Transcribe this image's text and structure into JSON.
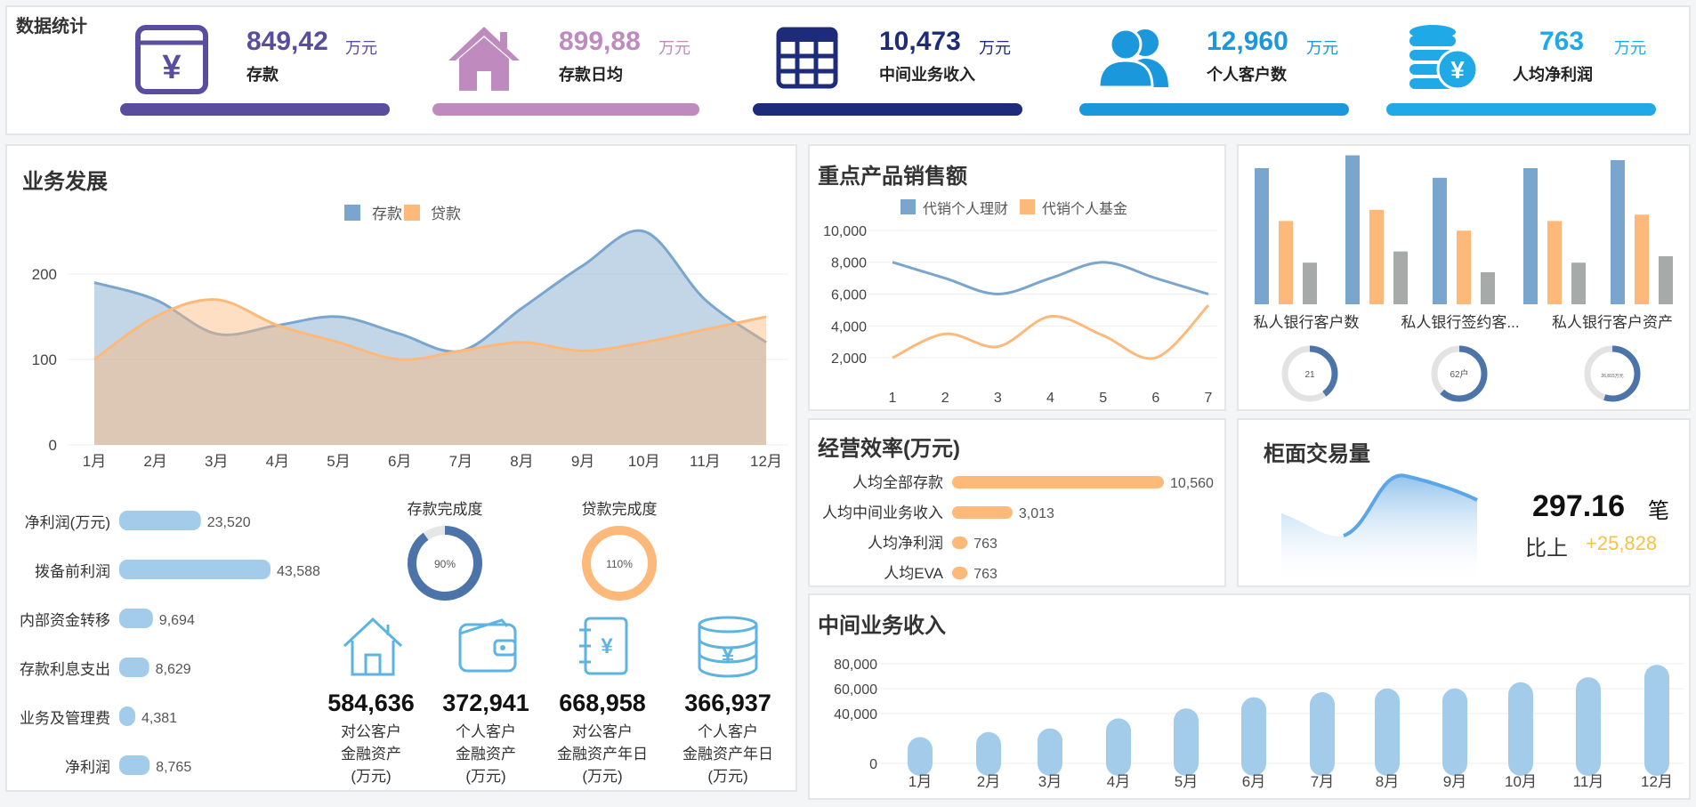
{
  "header": {
    "title": "数据统计"
  },
  "kpis": [
    {
      "value": "849,42",
      "unit": "万元",
      "label": "存款",
      "icon": "money-box-icon",
      "color": "#5b4d9e"
    },
    {
      "value": "899,88",
      "unit": "万元",
      "label": "存款日均",
      "icon": "house-icon",
      "color": "#bf8abe"
    },
    {
      "value": "10,473",
      "unit": "万元",
      "label": "中间业务收入",
      "icon": "grid-icon",
      "color": "#1d2b7a"
    },
    {
      "value": "12,960",
      "unit": "万元",
      "label": "个人客户数",
      "icon": "users-icon",
      "color": "#1b97db"
    },
    {
      "value": "763",
      "unit": "万元",
      "label": "人均净利润",
      "icon": "coins-icon",
      "color": "#1fa9e6"
    }
  ],
  "business": {
    "title": "业务发展",
    "chart_data": {
      "type": "area",
      "categories": [
        "1月",
        "2月",
        "3月",
        "4月",
        "5月",
        "6月",
        "7月",
        "8月",
        "9月",
        "10月",
        "11月",
        "12月"
      ],
      "series": [
        {
          "name": "存款",
          "values": [
            190,
            170,
            130,
            140,
            150,
            130,
            110,
            160,
            210,
            250,
            170,
            120
          ]
        },
        {
          "name": "贷款",
          "values": [
            100,
            150,
            170,
            140,
            120,
            100,
            110,
            120,
            110,
            120,
            135,
            150
          ]
        }
      ],
      "yticks": [
        "0",
        "100",
        "200"
      ],
      "ylim": [
        0,
        250
      ]
    }
  },
  "profit_bars": {
    "chart_data": {
      "type": "bar",
      "categories": [
        "净利润(万元)",
        "拨备前利润",
        "内部资金转移",
        "存款利息支出",
        "业务及管理费",
        "净利润"
      ],
      "values": [
        23520,
        43588,
        9694,
        8629,
        4381,
        8765
      ],
      "labels": [
        "23,520",
        "43,588",
        "9,694",
        "8,629",
        "4,381",
        "8,765"
      ]
    }
  },
  "completion": {
    "deposit": {
      "title": "存款完成度",
      "value": 0.9,
      "label": "90%"
    },
    "loan": {
      "title": "贷款完成度",
      "value": 1.1,
      "label": "110%"
    }
  },
  "assets": [
    {
      "value": "584,636",
      "line1": "对公客户",
      "line2": "金融资产",
      "line3": "(万元)",
      "icon": "house-outline-icon"
    },
    {
      "value": "372,941",
      "line1": "个人客户",
      "line2": "金融资产",
      "line3": "(万元)",
      "icon": "wallet-icon"
    },
    {
      "value": "668,958",
      "line1": "对公客户",
      "line2": "金融资产年日",
      "line3": "(万元)",
      "icon": "notebook-icon"
    },
    {
      "value": "366,937",
      "line1": "个人客户",
      "line2": "金融资产年日",
      "line3": "(万元)",
      "icon": "coin-stack-icon"
    }
  ],
  "products": {
    "title": "重点产品销售额",
    "chart_data": {
      "type": "line",
      "x": [
        "1",
        "2",
        "3",
        "4",
        "5",
        "6",
        "7"
      ],
      "series": [
        {
          "name": "代销个人理财",
          "values": [
            8000,
            7000,
            6000,
            7000,
            8000,
            7000,
            6000
          ]
        },
        {
          "name": "代销个人基金",
          "values": [
            2000,
            3500,
            2700,
            4600,
            3400,
            2000,
            5300
          ]
        }
      ],
      "yticks": [
        "2,000",
        "4,000",
        "6,000",
        "8,000",
        "10,000"
      ],
      "ylim": [
        1000,
        10500
      ]
    }
  },
  "private_bank": {
    "chart_data": {
      "type": "bar",
      "groups": [
        [
          0.85,
          0.52,
          0.26
        ],
        [
          0.93,
          0.59,
          0.33
        ],
        [
          0.79,
          0.46,
          0.2
        ],
        [
          0.85,
          0.52,
          0.26
        ],
        [
          0.9,
          0.56,
          0.3
        ]
      ]
    },
    "labels": [
      "私人银行客户数",
      "私人银行签约客...",
      "私人银行客户资产"
    ],
    "rings": [
      {
        "label": "21",
        "value": 0.4
      },
      {
        "label": "62户",
        "value": 0.62
      },
      {
        "label": "26,815万元",
        "value": 0.55
      }
    ]
  },
  "efficiency": {
    "title": "经营效率(万元)",
    "chart_data": {
      "type": "bar",
      "categories": [
        "人均全部存款",
        "人均中间业务收入",
        "人均净利润",
        "人均EVA"
      ],
      "values": [
        10560,
        3013,
        763,
        763
      ],
      "labels": [
        "10,560",
        "3,013",
        "763",
        "763"
      ]
    }
  },
  "counter": {
    "title": "柜面交易量",
    "value": "297.16",
    "unit": "笔",
    "compare_label": "比上",
    "compare_value": "+25,828"
  },
  "mid_income": {
    "title": "中间业务收入",
    "chart_data": {
      "type": "bar",
      "categories": [
        "1月",
        "2月",
        "3月",
        "4月",
        "5月",
        "6月",
        "7月",
        "8月",
        "9月",
        "10月",
        "11月",
        "12月"
      ],
      "values": [
        14000,
        18000,
        21000,
        29000,
        37000,
        46000,
        50000,
        53000,
        53000,
        58000,
        62000,
        72000
      ],
      "yticks": [
        "0",
        "40,000",
        "60,000",
        "80,000"
      ]
    }
  },
  "colors": {
    "blue": "#7aa5cc",
    "orange": "#fdb97a",
    "gray": "#a6aba9",
    "light": "#a3cbea"
  }
}
